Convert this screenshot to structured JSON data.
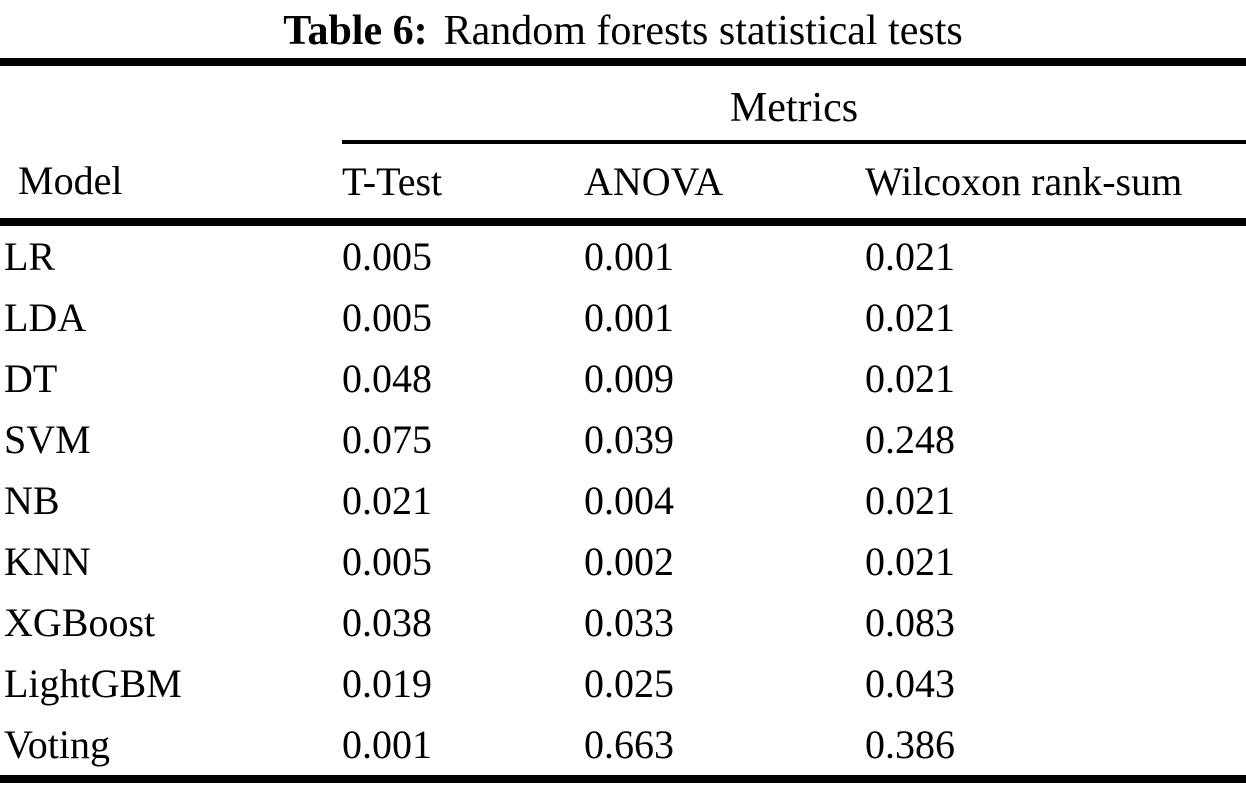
{
  "colors": {
    "background": "#ffffff",
    "text": "#000000",
    "rule": "#000000"
  },
  "caption": {
    "label": "Table 6:",
    "text": "Random forests statistical tests"
  },
  "table": {
    "group_header": "Metrics",
    "columns": {
      "model": "Model",
      "t_test": "T-Test",
      "anova": "ANOVA",
      "wilcoxon": "Wilcoxon rank-sum"
    },
    "rows": [
      {
        "model": "LR",
        "t_test": "0.005",
        "anova": "0.001",
        "wilcoxon": "0.021"
      },
      {
        "model": "LDA",
        "t_test": "0.005",
        "anova": "0.001",
        "wilcoxon": "0.021"
      },
      {
        "model": "DT",
        "t_test": "0.048",
        "anova": "0.009",
        "wilcoxon": "0.021"
      },
      {
        "model": "SVM",
        "t_test": "0.075",
        "anova": "0.039",
        "wilcoxon": "0.248"
      },
      {
        "model": "NB",
        "t_test": "0.021",
        "anova": "0.004",
        "wilcoxon": "0.021"
      },
      {
        "model": "KNN",
        "t_test": "0.005",
        "anova": "0.002",
        "wilcoxon": "0.021"
      },
      {
        "model": "XGBoost",
        "t_test": "0.038",
        "anova": "0.033",
        "wilcoxon": "0.083"
      },
      {
        "model": "LightGBM",
        "t_test": "0.019",
        "anova": "0.025",
        "wilcoxon": "0.043"
      },
      {
        "model": "Voting",
        "t_test": "0.001",
        "anova": "0.663",
        "wilcoxon": "0.386"
      }
    ]
  },
  "chart_data": {
    "type": "table",
    "title": "Table 6: Random forests statistical tests",
    "group_header": "Metrics",
    "columns": [
      "Model",
      "T-Test",
      "ANOVA",
      "Wilcoxon rank-sum"
    ],
    "rows": [
      [
        "LR",
        0.005,
        0.001,
        0.021
      ],
      [
        "LDA",
        0.005,
        0.001,
        0.021
      ],
      [
        "DT",
        0.048,
        0.009,
        0.021
      ],
      [
        "SVM",
        0.075,
        0.039,
        0.248
      ],
      [
        "NB",
        0.021,
        0.004,
        0.021
      ],
      [
        "KNN",
        0.005,
        0.002,
        0.021
      ],
      [
        "XGBoost",
        0.038,
        0.033,
        0.083
      ],
      [
        "LightGBM",
        0.019,
        0.025,
        0.043
      ],
      [
        "Voting",
        0.001,
        0.663,
        0.386
      ]
    ]
  }
}
